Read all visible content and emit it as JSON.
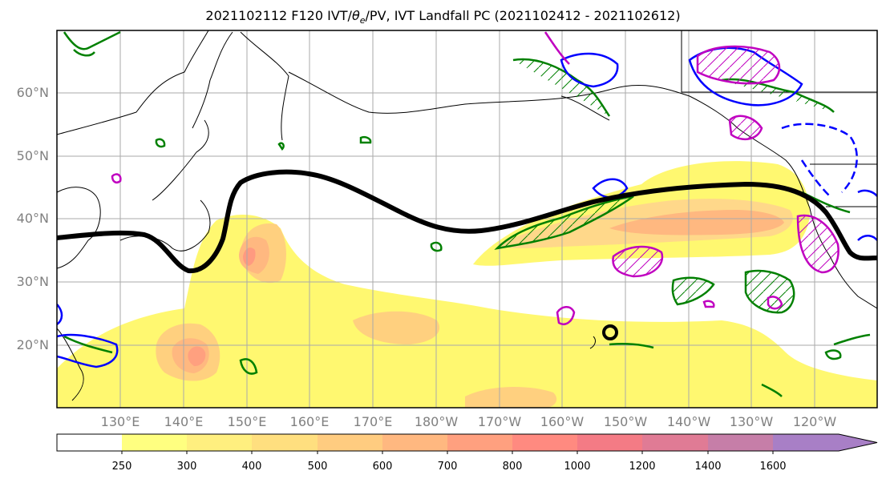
{
  "title": {
    "prefix": "2021102112 F120 IVT/",
    "symbol": "θ",
    "subscript": "e",
    "suffix": "/PV, IVT Landfall PC (2021102412 - 2021102612)"
  },
  "axes": {
    "lat_labels": [
      "60°N",
      "50°N",
      "40°N",
      "30°N",
      "20°N"
    ],
    "lon_labels": [
      "130°E",
      "140°E",
      "150°E",
      "160°E",
      "170°E",
      "180°W",
      "170°W",
      "160°W",
      "150°W",
      "140°W",
      "130°W",
      "120°W"
    ]
  },
  "colorbar": {
    "levels": [
      "250",
      "300",
      "400",
      "500",
      "600",
      "700",
      "800",
      "1000",
      "1200",
      "1400",
      "1600"
    ],
    "colors": [
      "#ffff80",
      "#ffef7f",
      "#ffdf7f",
      "#ffcc80",
      "#ffb880",
      "#ffa07f",
      "#ff8a80",
      "#f47b85",
      "#e07b95",
      "#c67ea8",
      "#a87fc6"
    ]
  },
  "contour_colors": {
    "ivt_fill": "#fff06a",
    "landfall_pc": "#000000",
    "pv": "#008000",
    "theta_e_pos": "#0000ff",
    "theta_e_neg": "#c000c0"
  }
}
